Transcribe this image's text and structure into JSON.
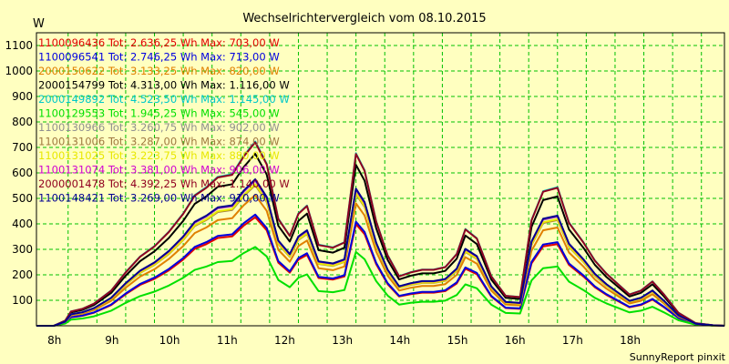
{
  "chart_data": {
    "type": "line",
    "title": "Wechselrichtervergleich vom 08.10.2015",
    "ylabel": "W",
    "xlabel": "",
    "footer": "SunnyReport pinxit",
    "ylim": [
      0,
      1150
    ],
    "yticks": [
      100,
      200,
      300,
      400,
      500,
      600,
      700,
      800,
      900,
      1000,
      1100
    ],
    "xlim": [
      7.45,
      19.4
    ],
    "xticks": [
      {
        "v": 8,
        "label": "8h"
      },
      {
        "v": 9,
        "label": "9h"
      },
      {
        "v": 10,
        "label": "10h"
      },
      {
        "v": 11,
        "label": "11h"
      },
      {
        "v": 12,
        "label": "12h"
      },
      {
        "v": 13,
        "label": "13h"
      },
      {
        "v": 14,
        "label": "14h"
      },
      {
        "v": 15,
        "label": "15h"
      },
      {
        "v": 16,
        "label": "16h"
      },
      {
        "v": 17,
        "label": "17h"
      },
      {
        "v": 18,
        "label": "18h"
      }
    ],
    "grid": true,
    "x": [
      7.45,
      7.75,
      7.95,
      8.05,
      8.25,
      8.45,
      8.75,
      9.0,
      9.25,
      9.5,
      9.75,
      10.0,
      10.2,
      10.4,
      10.6,
      10.85,
      11.05,
      11.25,
      11.45,
      11.65,
      11.85,
      12.0,
      12.15,
      12.35,
      12.6,
      12.8,
      13.0,
      13.15,
      13.35,
      13.55,
      13.75,
      13.95,
      14.15,
      14.35,
      14.55,
      14.75,
      14.9,
      15.1,
      15.35,
      15.6,
      15.85,
      16.05,
      16.25,
      16.5,
      16.7,
      16.95,
      17.15,
      17.35,
      17.55,
      17.75,
      17.95,
      18.15,
      18.35,
      18.6,
      18.9,
      19.2,
      19.4
    ],
    "series": [
      {
        "name": "1100096436",
        "legend": "1100096436 Tot: 2.636,25 Wh Max: 703,00 W",
        "color": "#e00000",
        "scale": 0.63,
        "dy": -18
      },
      {
        "name": "1100096541",
        "legend": "1100096541 Tot: 2.746,25 Wh Max: 713,00 W",
        "color": "#0000e0",
        "scale": 0.6389,
        "dy": -14
      },
      {
        "name": "2000150622",
        "legend": "2000150622 Tot: 3.133,25 Wh Max: 820,00 W",
        "color": "#e08000",
        "scale": 0.7348,
        "dy": -5
      },
      {
        "name": "2000154799",
        "legend": "2000154799 Tot: 4.313,00 Wh Max: 1.116,00 W",
        "color": "#000000",
        "scale": 1.0,
        "dy": -30
      },
      {
        "name": "2000149892",
        "legend": "2000149892 Tot: 4.523,50 Wh Max: 1.145,00 W",
        "color": "#00c8c8",
        "scale": 1.026,
        "dy": 0
      },
      {
        "name": "1100129553",
        "legend": "1100129553 Tot: 1.945,25 Wh Max: 545,00 W",
        "color": "#00e000",
        "scale": 0.4884,
        "dy": -35
      },
      {
        "name": "1100130966",
        "legend": "1100130966 Tot: 3.260,75 Wh Max: 902,00 W",
        "color": "#909090",
        "scale": 0.8082,
        "dy": 0
      },
      {
        "name": "1100131006",
        "legend": "1100131006 Tot: 3.287,00 Wh Max: 874,00 W",
        "color": "#a07840",
        "scale": 0.7832,
        "dy": 0
      },
      {
        "name": "1100131025",
        "legend": "1100131025 Tot: 3.223,75 Wh Max: 880,00 W",
        "color": "#e8e800",
        "scale": 0.7885,
        "dy": 0
      },
      {
        "name": "1100131074",
        "legend": "1100131074 Tot: 3.381,00 Wh Max: 906,00 W",
        "color": "#d000d0",
        "scale": 0.8118,
        "dy": 0
      },
      {
        "name": "2000001478",
        "legend": "2000001478 Tot: 4.392,25 Wh Max: 1.140,00 W",
        "color": "#900020",
        "scale": 1.0215,
        "dy": 0
      },
      {
        "name": "1100148421",
        "legend": "1100148421 Tot: 3.269,00 Wh Max: 910,00 W",
        "color": "#000090",
        "scale": 0.8154,
        "dy": 0
      }
    ],
    "base_profile": [
      0,
      0,
      20,
      55,
      65,
      85,
      135,
      205,
      265,
      305,
      360,
      430,
      500,
      530,
      570,
      580,
      650,
      705,
      620,
      410,
      345,
      430,
      460,
      310,
      300,
      320,
      660,
      595,
      400,
      270,
      190,
      205,
      215,
      215,
      225,
      275,
      370,
      335,
      190,
      115,
      110,
      405,
      515,
      530,
      395,
      320,
      250,
      200,
      160,
      120,
      135,
      170,
      120,
      50,
      10,
      2,
      0
    ]
  }
}
